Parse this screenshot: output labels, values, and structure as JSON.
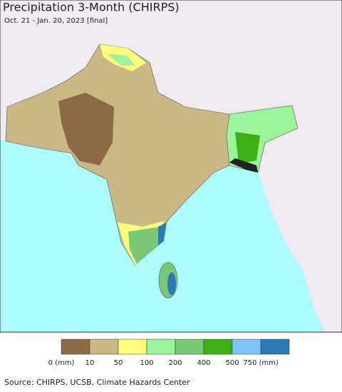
{
  "header": {
    "title": "Precipitation 3-Month (CHIRPS)",
    "subtitle": "Oct. 21 - Jan. 20, 2023 [final]"
  },
  "legend": {
    "labels": [
      "0 (mm)",
      "10",
      "50",
      "100",
      "200",
      "400",
      "500",
      "750 (mm)"
    ],
    "colors": [
      "#8c6a48",
      "#cbb985",
      "#ffff7c",
      "#9cf49a",
      "#78c878",
      "#3caf14",
      "#82c3fa",
      "#2a7ab4"
    ]
  },
  "footer": {
    "source": "Source: CHIRPS, UCSB, Climate Hazards Center"
  }
}
